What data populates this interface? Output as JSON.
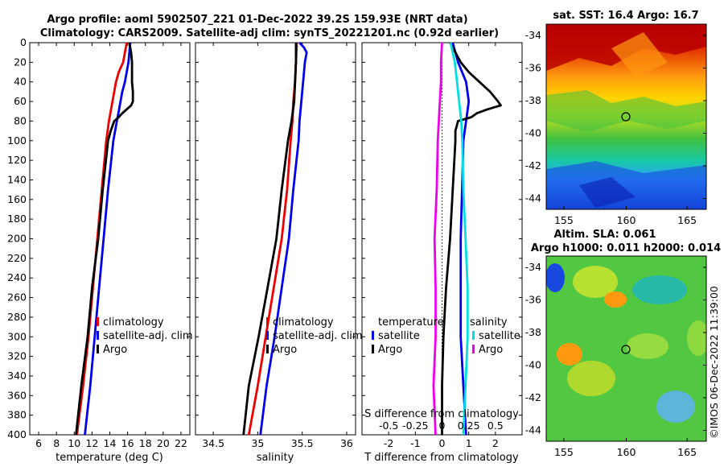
{
  "title": {
    "line1": "Argo profile: aoml 5902507_221 01-Dec-2022 39.2S 159.93E (NRT data)",
    "line2": "Climatology: CARS2009. Satellite-adj clim: synTS_20221201.nc (0.92d earlier)"
  },
  "colors": {
    "climatology": "#ee0000",
    "satellite": "#0000ee",
    "argo": "#000000",
    "salinity_sat": "#00e0e0",
    "salinity_argo": "#ee00ee"
  },
  "chart_data": [
    {
      "type": "line",
      "panel": "temperature",
      "xlabel": "temperature (deg C)",
      "ylabel": "",
      "xlim": [
        5,
        23
      ],
      "ylim": [
        400,
        0
      ],
      "xticks": [
        "6",
        "8",
        "10",
        "12",
        "14",
        "16",
        "18",
        "20",
        "22"
      ],
      "yticks": [
        "0",
        "20",
        "40",
        "60",
        "80",
        "100",
        "120",
        "140",
        "160",
        "180",
        "200",
        "220",
        "240",
        "260",
        "280",
        "300",
        "320",
        "340",
        "360",
        "380",
        "400"
      ],
      "legend": [
        "climatology",
        "satellite-adj. clim",
        "Argo"
      ],
      "series": [
        {
          "name": "climatology",
          "color": "#ee0000",
          "depth": [
            0,
            10,
            20,
            30,
            40,
            50,
            60,
            70,
            80,
            100,
            150,
            200,
            250,
            300,
            350,
            400
          ],
          "values": [
            15.9,
            15.7,
            15.5,
            15.0,
            14.7,
            14.5,
            14.3,
            14.1,
            13.9,
            13.6,
            13.1,
            12.6,
            12.1,
            11.6,
            11.0,
            10.3
          ]
        },
        {
          "name": "satellite-adj. clim",
          "color": "#0000ee",
          "depth": [
            0,
            10,
            20,
            30,
            40,
            50,
            60,
            70,
            80,
            100,
            150,
            200,
            250,
            300,
            350,
            400
          ],
          "values": [
            16.3,
            16.2,
            16.1,
            15.9,
            15.7,
            15.4,
            15.2,
            15.0,
            14.8,
            14.4,
            13.8,
            13.3,
            12.8,
            12.3,
            11.8,
            11.2
          ]
        },
        {
          "name": "Argo",
          "color": "#000000",
          "depth": [
            0,
            10,
            20,
            30,
            40,
            50,
            60,
            64,
            68,
            72,
            76,
            80,
            90,
            100,
            150,
            200,
            250,
            300,
            350,
            400
          ],
          "values": [
            16.2,
            16.4,
            16.5,
            16.5,
            16.5,
            16.6,
            16.6,
            16.4,
            15.9,
            15.4,
            15.0,
            14.5,
            14.1,
            13.8,
            13.2,
            12.7,
            12.0,
            11.5,
            10.8,
            10.2
          ]
        }
      ]
    },
    {
      "type": "line",
      "panel": "salinity",
      "xlabel": "salinity",
      "xlim": [
        34.3,
        36.1
      ],
      "ylim": [
        400,
        0
      ],
      "xticks": [
        "34.5",
        "35",
        "35.5",
        "36"
      ],
      "legend": [
        "climatology",
        "satellite-adj. clim",
        "Argo"
      ],
      "series": [
        {
          "name": "climatology",
          "color": "#ee0000",
          "depth": [
            0,
            20,
            40,
            60,
            80,
            100,
            150,
            200,
            250,
            300,
            350,
            400
          ],
          "values": [
            35.44,
            35.43,
            35.42,
            35.4,
            35.39,
            35.37,
            35.33,
            35.27,
            35.18,
            35.09,
            35.0,
            34.9
          ]
        },
        {
          "name": "satellite-adj. clim",
          "color": "#0000ee",
          "depth": [
            0,
            5,
            10,
            20,
            40,
            60,
            80,
            100,
            150,
            200,
            250,
            300,
            350,
            400
          ],
          "values": [
            35.47,
            35.52,
            35.55,
            35.53,
            35.51,
            35.49,
            35.47,
            35.46,
            35.4,
            35.35,
            35.27,
            35.19,
            35.1,
            35.03
          ]
        },
        {
          "name": "Argo",
          "color": "#000000",
          "depth": [
            0,
            20,
            40,
            60,
            80,
            100,
            150,
            200,
            250,
            300,
            350,
            400
          ],
          "values": [
            35.43,
            35.43,
            35.42,
            35.41,
            35.38,
            35.34,
            35.27,
            35.21,
            35.11,
            35.01,
            34.9,
            34.84
          ]
        }
      ]
    },
    {
      "type": "line",
      "panel": "difference",
      "xlabel": "T difference from climatology",
      "xlabel2": "S difference from climatology",
      "xlim": [
        -3,
        3
      ],
      "ylim": [
        400,
        0
      ],
      "xticks": [
        "-2",
        "-1",
        "0",
        "1",
        "2"
      ],
      "xticks2": [
        "-0.5",
        "-0.25",
        "0",
        "0.25",
        "0.5"
      ],
      "legend_temperature_title": "temperature",
      "legend_salinity_title": "salinity",
      "legend": [
        "satellite",
        "Argo",
        "satellite",
        "Argo"
      ],
      "series": [
        {
          "name": "T satellite",
          "color": "#0000ee",
          "depth": [
            0,
            20,
            40,
            60,
            80,
            100,
            150,
            200,
            250,
            300,
            350,
            400
          ],
          "values": [
            0.4,
            0.6,
            0.9,
            1.0,
            0.9,
            0.8,
            0.75,
            0.7,
            0.7,
            0.7,
            0.8,
            0.9
          ]
        },
        {
          "name": "T Argo",
          "color": "#000000",
          "depth": [
            0,
            20,
            30,
            40,
            50,
            60,
            64,
            68,
            72,
            76,
            80,
            90,
            100,
            150,
            200,
            250,
            300,
            350,
            400
          ],
          "values": [
            0.3,
            0.7,
            1.0,
            1.4,
            1.8,
            2.1,
            2.2,
            1.7,
            1.3,
            1.1,
            0.6,
            0.5,
            0.5,
            0.4,
            0.3,
            0.15,
            0.05,
            0.0,
            0.0
          ]
        },
        {
          "name": "S satellite",
          "color": "#00e0e0",
          "depth": [
            0,
            20,
            40,
            60,
            80,
            100,
            150,
            200,
            250,
            300,
            350,
            400
          ],
          "values": [
            0.08,
            0.12,
            0.14,
            0.16,
            0.18,
            0.19,
            0.2,
            0.22,
            0.24,
            0.24,
            0.22,
            0.2
          ]
        },
        {
          "name": "S Argo",
          "color": "#ee00ee",
          "depth": [
            0,
            20,
            40,
            60,
            80,
            100,
            150,
            200,
            250,
            300,
            350,
            400
          ],
          "values": [
            0.0,
            -0.01,
            -0.01,
            -0.02,
            -0.03,
            -0.04,
            -0.05,
            -0.07,
            -0.06,
            -0.06,
            -0.08,
            -0.06
          ]
        }
      ]
    }
  ],
  "maps": {
    "sst": {
      "title": "sat. SST: 16.4 Argo: 16.7",
      "xticks": [
        "155",
        "160",
        "165"
      ],
      "yticks": [
        "-34",
        "-36",
        "-38",
        "-40",
        "-42",
        "-44"
      ]
    },
    "sla": {
      "title1": "Altim. SLA: 0.061",
      "title2": "Argo h1000: 0.011 h2000: 0.014",
      "xticks": [
        "155",
        "160",
        "165"
      ],
      "yticks": [
        "-34",
        "-36",
        "-38",
        "-40",
        "-42",
        "-44"
      ]
    }
  },
  "credit": "©IMOS 06-Dec-2022 11:39:00"
}
